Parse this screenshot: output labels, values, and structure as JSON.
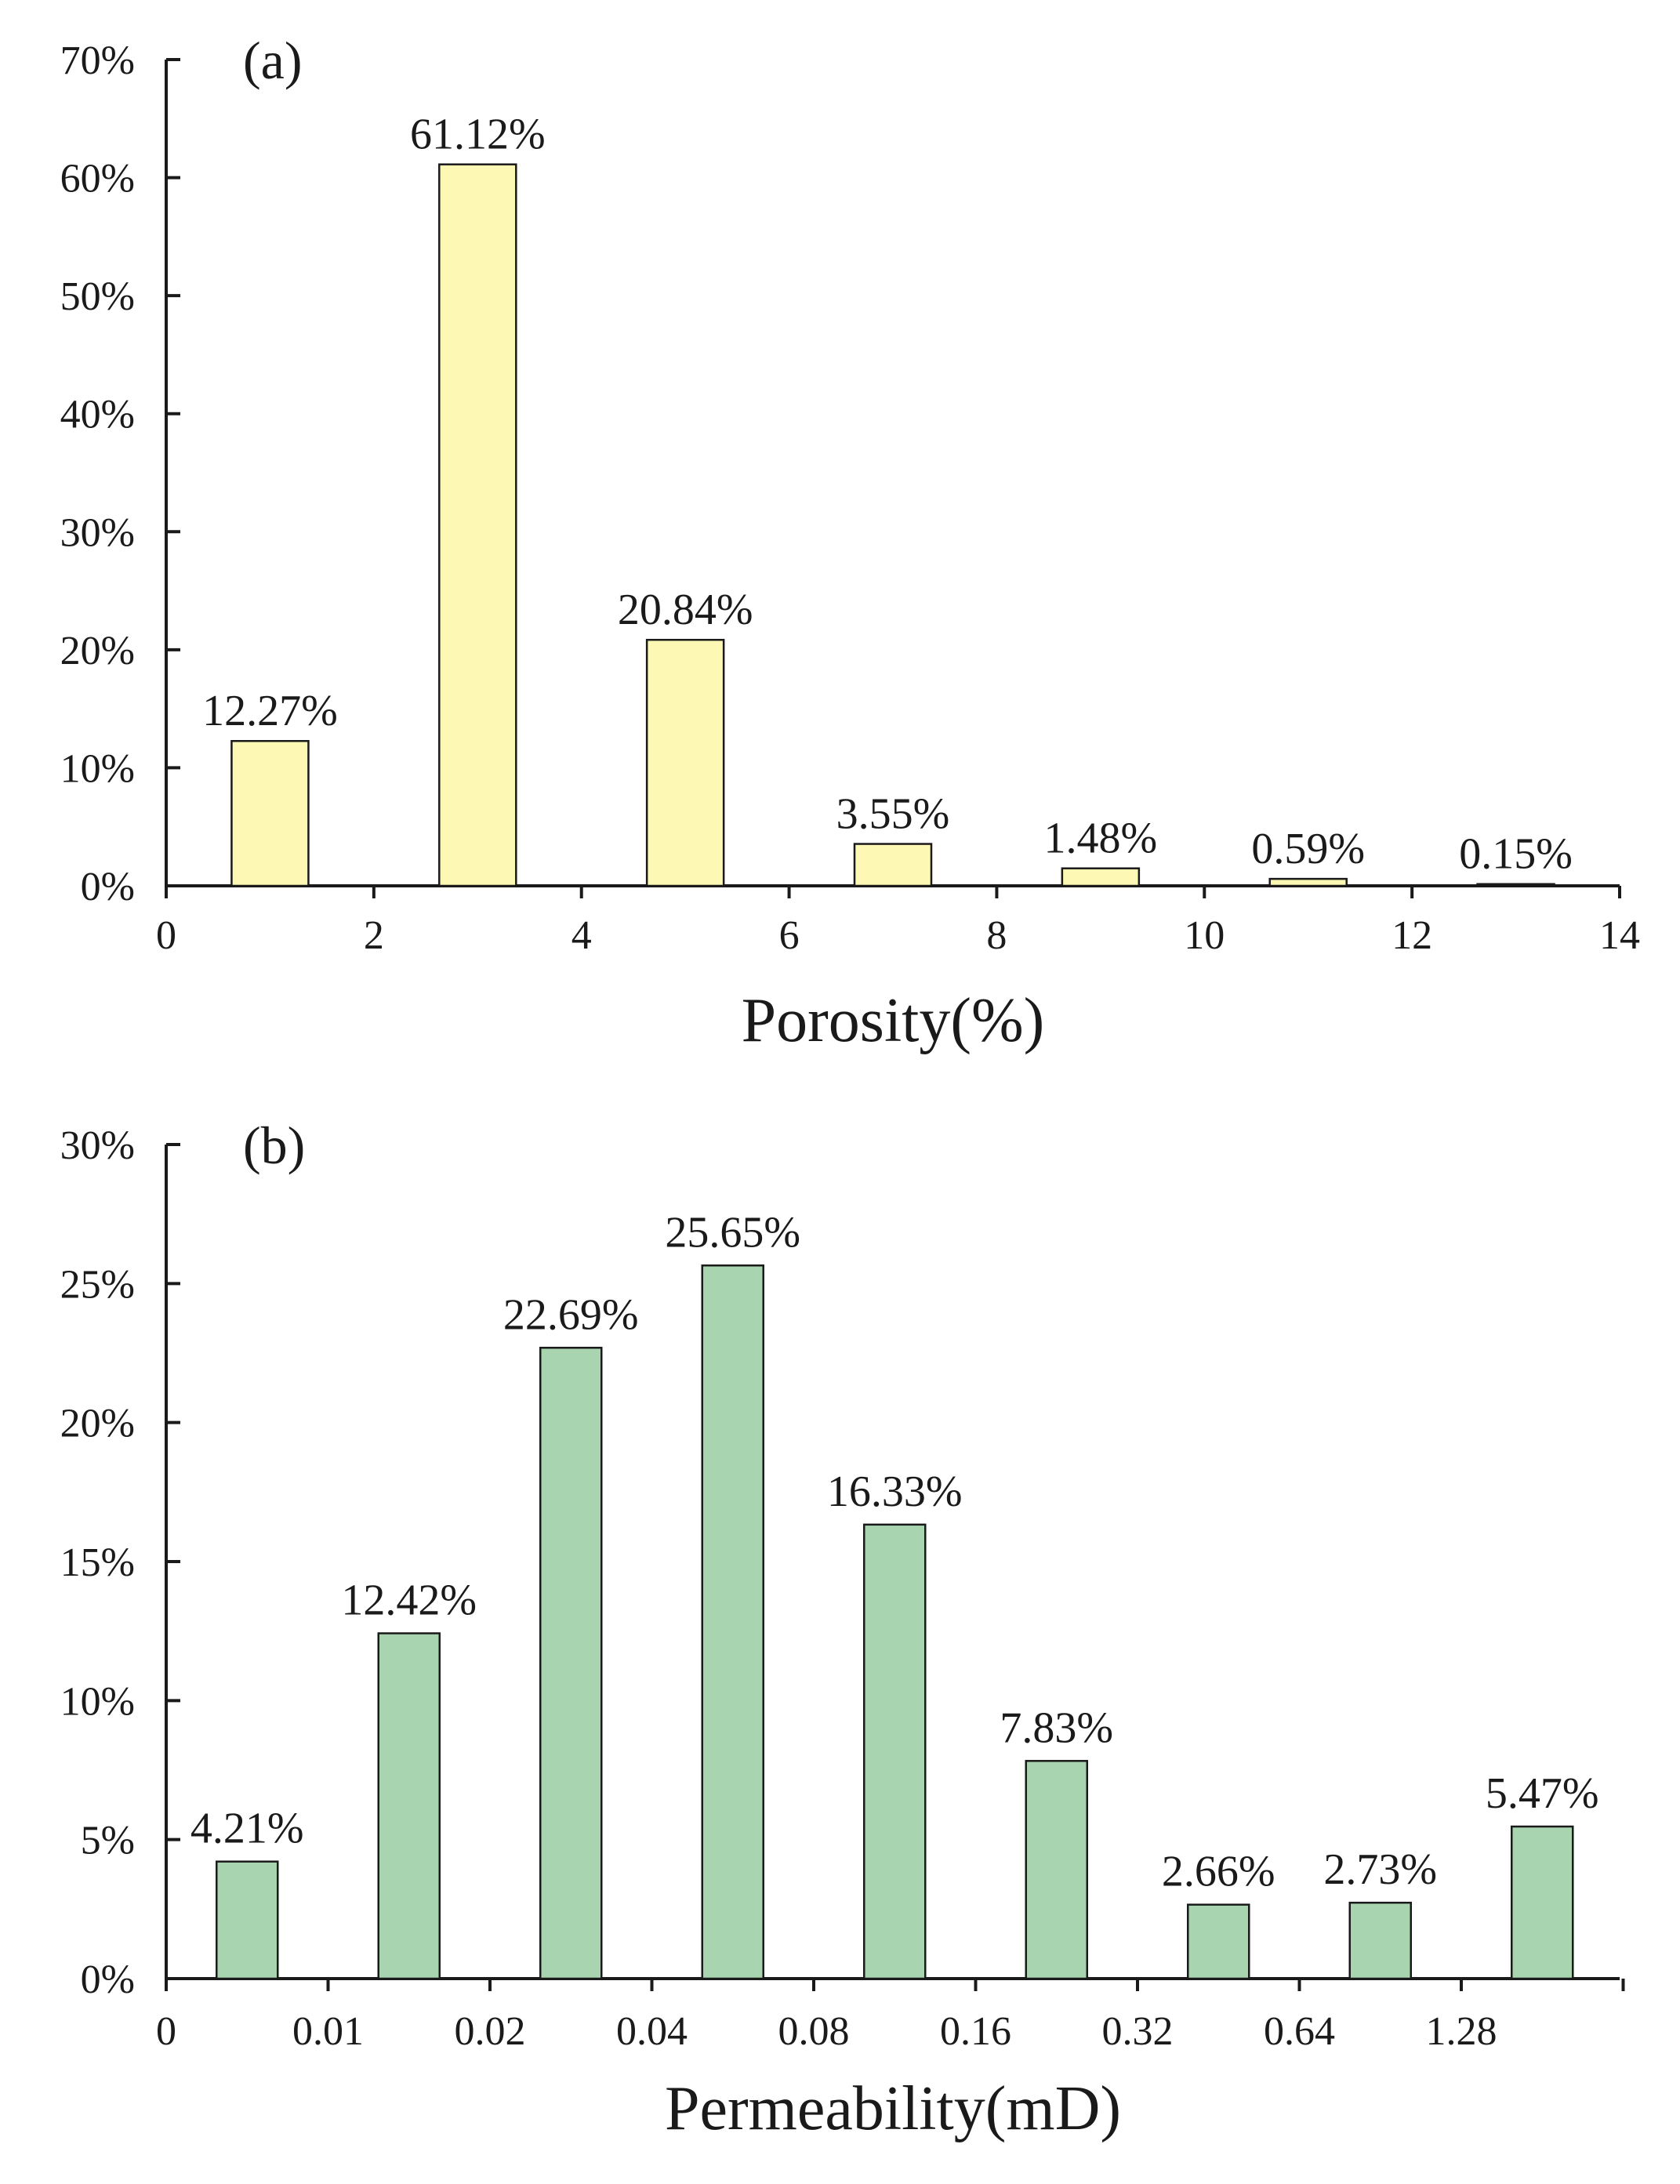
{
  "chart_data": [
    {
      "id": "a",
      "type": "bar",
      "panel_label": "(a)",
      "title": "",
      "xlabel": "Porosity(%)",
      "ylabel": "",
      "xlim": [
        0,
        14
      ],
      "ylim": [
        0,
        70
      ],
      "x_ticks": [
        "0",
        "2",
        "4",
        "6",
        "8",
        "10",
        "12",
        "14"
      ],
      "y_ticks": [
        "0%",
        "10%",
        "20%",
        "30%",
        "40%",
        "50%",
        "60%",
        "70%"
      ],
      "bin_centers": [
        1,
        3,
        5,
        7,
        9,
        11,
        13
      ],
      "values": [
        12.27,
        61.12,
        20.84,
        3.55,
        1.48,
        0.59,
        0.15
      ],
      "data_labels": [
        "12.27%",
        "61.12%",
        "20.84%",
        "3.55%",
        "1.48%",
        "0.59%",
        "0.15%"
      ],
      "bar_color": "#fdf8b3",
      "grid": false
    },
    {
      "id": "b",
      "type": "bar",
      "panel_label": "(b)",
      "title": "",
      "xlabel": "Permeability(mD)",
      "ylabel": "",
      "ylim": [
        0,
        30
      ],
      "x_ticks": [
        "0",
        "0.01",
        "0.02",
        "0.04",
        "0.08",
        "0.16",
        "0.32",
        "0.64",
        "1.28",
        ""
      ],
      "y_ticks": [
        "0%",
        "5%",
        "10%",
        "15%",
        "20%",
        "25%",
        "30%"
      ],
      "categories": [
        "0-0.01",
        "0.01-0.02",
        "0.02-0.04",
        "0.04-0.08",
        "0.08-0.16",
        "0.16-0.32",
        "0.32-0.64",
        "0.64-1.28",
        "1.28-2.56"
      ],
      "values": [
        4.21,
        12.42,
        22.69,
        25.65,
        16.33,
        7.83,
        2.66,
        2.73,
        5.47
      ],
      "data_labels": [
        "4.21%",
        "12.42%",
        "22.69%",
        "25.65%",
        "16.33%",
        "7.83%",
        "2.66%",
        "2.73%",
        "5.47%"
      ],
      "bar_color": "#a8d5b0",
      "grid": false
    }
  ]
}
